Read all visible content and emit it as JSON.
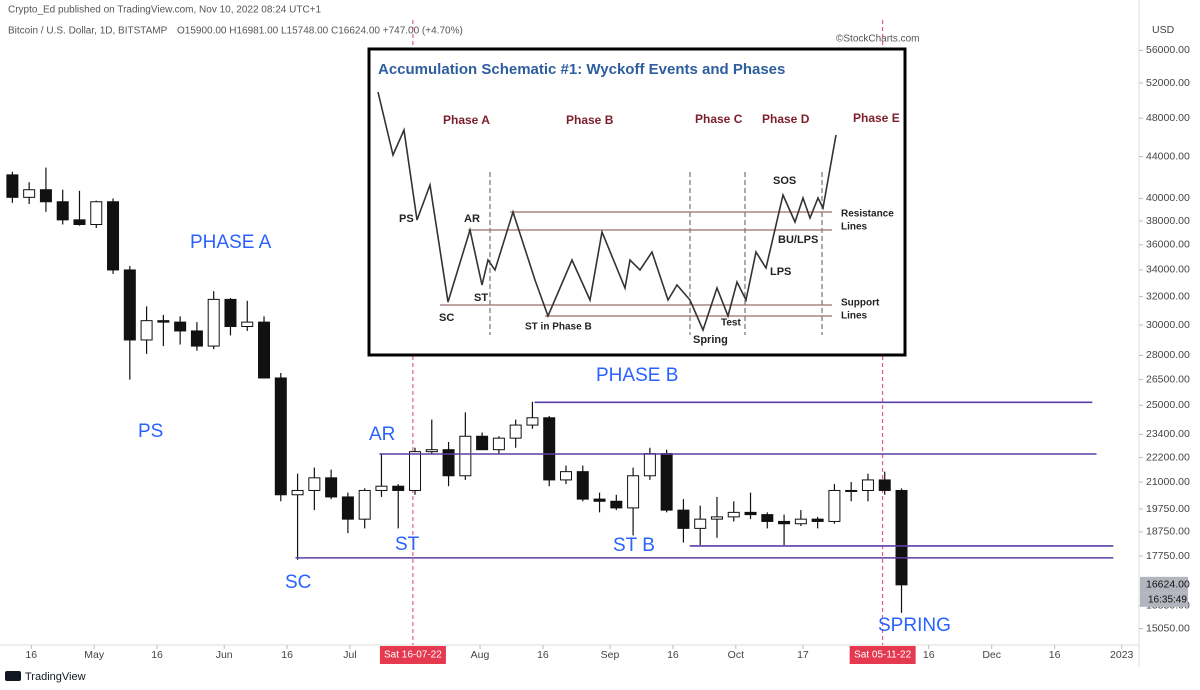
{
  "header": {
    "published": "Crypto_Ed published on TradingView.com, Nov 10, 2022 08:24 UTC+1",
    "symbol": "Bitcoin / U.S. Dollar, 1D, BITSTAMP",
    "ohlc": "O15900.00  H16981.00  L15748.00  C16624.00  +747.00 (+4.70%)",
    "credit": "©StockCharts.com"
  },
  "chart_data": {
    "type": "candlestick",
    "y_axis_label": "USD",
    "log_scale": true,
    "up_color": "#ffffff",
    "down_color": "#111111",
    "x": [
      "2022-04-10",
      "2022-04-14",
      "2022-04-18",
      "2022-04-22",
      "2022-04-26",
      "2022-04-30",
      "2022-05-04",
      "2022-05-08",
      "2022-05-12",
      "2022-05-16",
      "2022-05-20",
      "2022-05-24",
      "2022-05-28",
      "2022-06-01",
      "2022-06-05",
      "2022-06-09",
      "2022-06-13",
      "2022-06-17",
      "2022-06-21",
      "2022-06-25",
      "2022-06-29",
      "2022-07-03",
      "2022-07-07",
      "2022-07-11",
      "2022-07-15",
      "2022-07-19",
      "2022-07-23",
      "2022-07-27",
      "2022-07-31",
      "2022-08-04",
      "2022-08-08",
      "2022-08-12",
      "2022-08-16",
      "2022-08-20",
      "2022-08-24",
      "2022-08-28",
      "2022-09-01",
      "2022-09-05",
      "2022-09-09",
      "2022-09-13",
      "2022-09-17",
      "2022-09-21",
      "2022-09-25",
      "2022-09-29",
      "2022-10-03",
      "2022-10-07",
      "2022-10-11",
      "2022-10-15",
      "2022-10-19",
      "2022-10-23",
      "2022-10-27",
      "2022-10-31",
      "2022-11-04",
      "2022-11-08"
    ],
    "open": [
      42200,
      40100,
      40800,
      39700,
      38100,
      37700,
      39700,
      34000,
      29000,
      30300,
      30200,
      29600,
      28600,
      31800,
      29900,
      30200,
      26600,
      20400,
      20600,
      21200,
      20300,
      19300,
      20600,
      20800,
      20600,
      22500,
      22600,
      21300,
      23300,
      22600,
      23200,
      23900,
      24300,
      21100,
      21500,
      20200,
      20100,
      19800,
      21300,
      22400,
      19700,
      18900,
      19300,
      19400,
      19600,
      19500,
      19200,
      19100,
      19300,
      19200,
      20600,
      20600,
      21100,
      20600
    ],
    "high": [
      42500,
      41500,
      42900,
      40800,
      40700,
      39800,
      40000,
      34300,
      31300,
      30700,
      30600,
      30200,
      32400,
      31900,
      31700,
      30600,
      26900,
      21400,
      21700,
      21600,
      20500,
      20700,
      22400,
      20900,
      22700,
      24200,
      23000,
      24600,
      23500,
      23300,
      24200,
      25200,
      24400,
      21800,
      21800,
      20500,
      20400,
      21700,
      22700,
      22600,
      20200,
      19900,
      20300,
      20100,
      20500,
      19600,
      19500,
      19700,
      19400,
      20900,
      21000,
      21400,
      21500,
      20700
    ],
    "low": [
      39600,
      39500,
      38800,
      37700,
      37600,
      37400,
      33700,
      26500,
      28100,
      28600,
      28700,
      28300,
      28400,
      29300,
      29600,
      26600,
      20100,
      17600,
      19700,
      20200,
      18700,
      18900,
      20300,
      18900,
      20400,
      22400,
      20800,
      21100,
      22600,
      22400,
      22700,
      23700,
      20800,
      20900,
      20100,
      19600,
      19700,
      18600,
      21100,
      19600,
      18300,
      18200,
      18500,
      19200,
      19300,
      18900,
      18200,
      19000,
      18900,
      19100,
      20100,
      20100,
      20400,
      15600
    ],
    "close": [
      40100,
      40800,
      39700,
      38100,
      37700,
      39700,
      34000,
      29000,
      30300,
      30200,
      29600,
      28600,
      31800,
      29900,
      30200,
      26600,
      20400,
      20600,
      21200,
      20300,
      19300,
      20600,
      20800,
      20600,
      22500,
      22600,
      21300,
      23300,
      22600,
      23200,
      23900,
      24300,
      21100,
      21500,
      20200,
      20100,
      19800,
      21300,
      22400,
      19700,
      18900,
      19300,
      19400,
      19600,
      19500,
      19200,
      19100,
      19300,
      19200,
      20600,
      20600,
      21100,
      20600,
      16624
    ],
    "ylim": [
      14500,
      60000
    ],
    "yticks": [
      {
        "value": 56000,
        "label": "56000.00"
      },
      {
        "value": 52000,
        "label": "52000.00"
      },
      {
        "value": 48000,
        "label": "48000.00"
      },
      {
        "value": 44000,
        "label": "44000.00"
      },
      {
        "value": 40000,
        "label": "40000.00"
      },
      {
        "value": 38000,
        "label": "38000.00"
      },
      {
        "value": 36000,
        "label": "36000.00"
      },
      {
        "value": 34000,
        "label": "34000.00"
      },
      {
        "value": 32000,
        "label": "32000.00"
      },
      {
        "value": 30000,
        "label": "30000.00"
      },
      {
        "value": 28000,
        "label": "28000.00"
      },
      {
        "value": 26500,
        "label": "26500.00"
      },
      {
        "value": 25000,
        "label": "25000.00"
      },
      {
        "value": 23400,
        "label": "23400.00"
      },
      {
        "value": 22200,
        "label": "22200.00"
      },
      {
        "value": 21000,
        "label": "21000.00"
      },
      {
        "value": 19750,
        "label": "19750.00"
      },
      {
        "value": 18750,
        "label": "18750.00"
      },
      {
        "value": 17750,
        "label": "17750.00"
      },
      {
        "value": 15850,
        "label": "15850.00"
      },
      {
        "value": 15050,
        "label": "15050.00"
      }
    ],
    "xticks": [
      {
        "value": "2022-04-16",
        "label": "16"
      },
      {
        "value": "2022-05-01",
        "label": "May"
      },
      {
        "value": "2022-05-16",
        "label": "16"
      },
      {
        "value": "2022-06-01",
        "label": "Jun"
      },
      {
        "value": "2022-06-16",
        "label": "16"
      },
      {
        "value": "2022-07-01",
        "label": "Jul"
      },
      {
        "value": "2022-08-01",
        "label": "Aug"
      },
      {
        "value": "2022-08-16",
        "label": "16"
      },
      {
        "value": "2022-09-01",
        "label": "Sep"
      },
      {
        "value": "2022-09-16",
        "label": "16"
      },
      {
        "value": "2022-10-01",
        "label": "Oct"
      },
      {
        "value": "2022-10-17",
        "label": "17"
      },
      {
        "value": "2022-11-16",
        "label": "16"
      },
      {
        "value": "2022-12-01",
        "label": "Dec"
      },
      {
        "value": "2022-12-16",
        "label": "16"
      },
      {
        "value": "2023-01-01",
        "label": "2023"
      }
    ],
    "last_price": {
      "value": 16624,
      "label": "16624.00"
    },
    "countdown": "16:35:49",
    "markers": [
      {
        "date": "2022-07-16",
        "label": "Sat 16-07-22"
      },
      {
        "date": "2022-11-05",
        "label": "Sat 05-11-22"
      }
    ],
    "levels": [
      {
        "price": 25170,
        "start": "2022-08-14",
        "end": "2022-12-25"
      },
      {
        "price": 22380,
        "start": "2022-07-08",
        "end": "2022-12-26"
      },
      {
        "price": 18160,
        "start": "2022-09-20",
        "end": "2022-12-30"
      },
      {
        "price": 17675,
        "start": "2022-06-18",
        "end": "2022-12-30"
      }
    ],
    "annotations": [
      "PHASE A",
      "PS",
      "AR",
      "SC",
      "ST",
      "PHASE B",
      "ST B",
      "SPRING"
    ]
  },
  "inset": {
    "title": "Accumulation Schematic #1: Wyckoff Events and Phases",
    "phases": [
      "Phase A",
      "Phase B",
      "Phase C",
      "Phase D",
      "Phase E"
    ],
    "events": [
      "PS",
      "AR",
      "ST",
      "SC",
      "ST in Phase B",
      "Spring",
      "Test",
      "SOS",
      "BU/LPS",
      "LPS"
    ],
    "resistance": [
      "Resistance",
      "Lines"
    ],
    "support": [
      "Support",
      "Lines"
    ]
  },
  "footer": {
    "brand": "TradingView"
  }
}
